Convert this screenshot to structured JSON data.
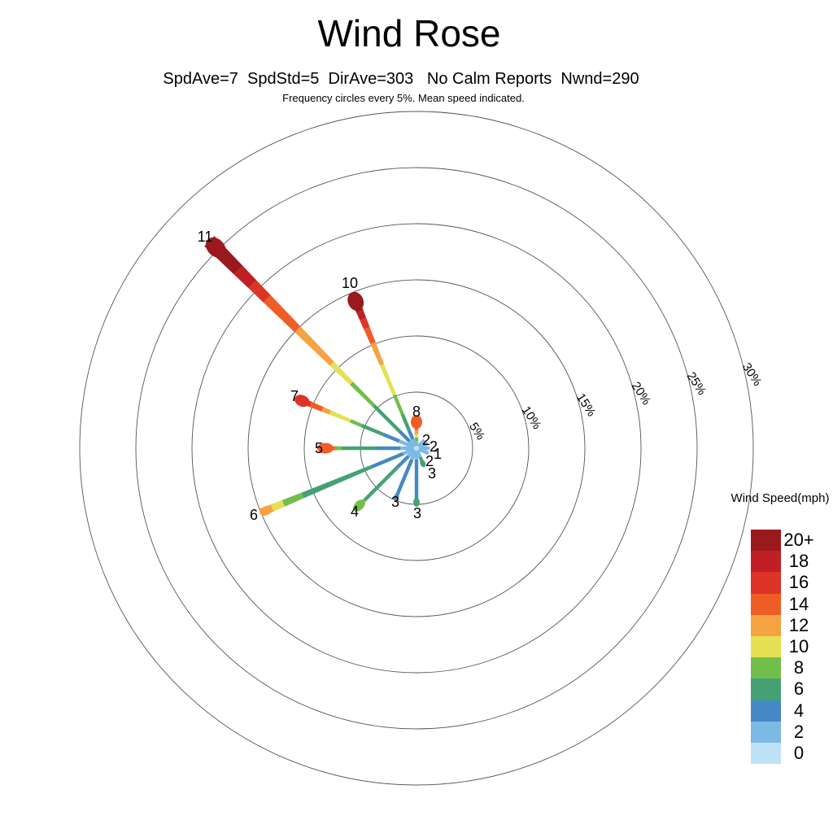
{
  "title": "Wind Rose",
  "stats_line": "SpdAve=7  SpdStd=5  DirAve=303   No Calm Reports  Nwnd=290",
  "caption": "Frequency circles every 5%. Mean speed indicated.",
  "legend": {
    "title": "Wind Speed(mph)",
    "entries": [
      {
        "label": "20+",
        "color": "#9A191D"
      },
      {
        "label": "18",
        "color": "#C02025"
      },
      {
        "label": "16",
        "color": "#DC3427"
      },
      {
        "label": "14",
        "color": "#EF5D27"
      },
      {
        "label": "12",
        "color": "#F5A243"
      },
      {
        "label": "10",
        "color": "#E5E054"
      },
      {
        "label": "8",
        "color": "#72BE4B"
      },
      {
        "label": "6",
        "color": "#45A173"
      },
      {
        "label": "4",
        "color": "#4489C5"
      },
      {
        "label": "2",
        "color": "#7CB9E3"
      },
      {
        "label": "0",
        "color": "#BEE2F7"
      }
    ]
  },
  "chart_data": {
    "type": "windrose",
    "frequency_rings_pct": [
      5,
      10,
      15,
      20,
      25,
      30
    ],
    "ring_labels": [
      "5%",
      "10%",
      "15%",
      "20%",
      "25%",
      "30%"
    ],
    "legend_position": "right",
    "speed_bin_colors": {
      "0": "#BEE2F7",
      "2": "#7CB9E3",
      "4": "#4489C5",
      "6": "#45A173",
      "8": "#72BE4B",
      "10": "#E5E054",
      "12": "#F5A243",
      "14": "#EF5D27",
      "16": "#DC3427",
      "18": "#C02025",
      "20+": "#9A191D"
    },
    "directions": [
      {
        "dir": "N",
        "compass_deg": 0,
        "mean_speed": "8",
        "total_pct": 2.83,
        "segments": [
          [
            "0",
            0,
            0.2
          ],
          [
            "2",
            0.2,
            0.65
          ],
          [
            "8",
            0.65,
            0.95
          ],
          [
            "10",
            0.95,
            1.25
          ],
          [
            "12",
            1.25,
            1.6
          ],
          [
            "14",
            1.6,
            2.83
          ]
        ]
      },
      {
        "dir": "NE",
        "compass_deg": 45,
        "mean_speed": "2",
        "total_pct": 1.01,
        "segments": [
          [
            "0",
            0,
            0.2
          ],
          [
            "2",
            0.2,
            1.01
          ]
        ]
      },
      {
        "dir": "ENE",
        "compass_deg": 67.5,
        "mean_speed": "2",
        "total_pct": 1.09,
        "segments": [
          [
            "0",
            0,
            0.2
          ],
          [
            "2",
            0.2,
            1.09
          ]
        ]
      },
      {
        "dir": "E",
        "compass_deg": 90,
        "mean_speed": "1",
        "total_pct": 1.16,
        "segments": [
          [
            "0",
            0,
            0.2
          ],
          [
            "2",
            0.2,
            1.16
          ]
        ]
      },
      {
        "dir": "ESE",
        "compass_deg": 112.5,
        "mean_speed": "2",
        "total_pct": 1.16,
        "segments": [
          [
            "0",
            0,
            0.2
          ],
          [
            "2",
            0.2,
            1.16
          ]
        ]
      },
      {
        "dir": "SSE",
        "compass_deg": 157.5,
        "mean_speed": "3",
        "total_pct": 1.74,
        "segments": [
          [
            "0",
            0,
            0.2
          ],
          [
            "2",
            0.2,
            0.87
          ],
          [
            "6",
            0.87,
            1.74
          ]
        ]
      },
      {
        "dir": "S",
        "compass_deg": 180,
        "mean_speed": "3",
        "total_pct": 5.14,
        "segments": [
          [
            "0",
            0,
            0.2
          ],
          [
            "2",
            0.2,
            1.01
          ],
          [
            "4",
            1.01,
            4.42
          ],
          [
            "6",
            4.42,
            5.14
          ]
        ]
      },
      {
        "dir": "SSW",
        "compass_deg": 202.5,
        "mean_speed": "3",
        "total_pct": 4.93,
        "segments": [
          [
            "0",
            0,
            0.2
          ],
          [
            "2",
            0.2,
            1.09
          ],
          [
            "4",
            1.09,
            4.93
          ]
        ]
      },
      {
        "dir": "SW",
        "compass_deg": 225,
        "mean_speed": "4",
        "total_pct": 7.75,
        "segments": [
          [
            "0",
            0,
            0.2
          ],
          [
            "2",
            0.2,
            1.01
          ],
          [
            "4",
            1.01,
            2.39
          ],
          [
            "6",
            2.39,
            6.52
          ],
          [
            "8",
            6.52,
            7.75
          ]
        ]
      },
      {
        "dir": "WSW",
        "compass_deg": 247.5,
        "mean_speed": "6",
        "total_pct": 15.0,
        "segments": [
          [
            "0",
            0,
            0.2
          ],
          [
            "2",
            0.2,
            1.3
          ],
          [
            "4",
            1.3,
            4.35
          ],
          [
            "6",
            4.35,
            11.0
          ],
          [
            "8",
            11.0,
            12.83
          ],
          [
            "10",
            12.83,
            13.91
          ],
          [
            "12",
            13.91,
            15.0
          ]
        ]
      },
      {
        "dir": "W",
        "compass_deg": 270,
        "mean_speed": "5",
        "total_pct": 8.7,
        "segments": [
          [
            "0",
            0,
            0.2
          ],
          [
            "2",
            0.2,
            1.45
          ],
          [
            "4",
            1.45,
            3.62
          ],
          [
            "6",
            3.62,
            6.67
          ],
          [
            "8",
            6.67,
            7.25
          ],
          [
            "14",
            7.25,
            8.7
          ]
        ]
      },
      {
        "dir": "WNW",
        "compass_deg": 292.5,
        "mean_speed": "7",
        "total_pct": 11.59,
        "segments": [
          [
            "0",
            0,
            0.2
          ],
          [
            "2",
            0.2,
            1.67
          ],
          [
            "4",
            1.67,
            3.26
          ],
          [
            "6",
            3.26,
            5.29
          ],
          [
            "8",
            5.29,
            6.38
          ],
          [
            "10",
            6.38,
            8.33
          ],
          [
            "12",
            8.33,
            9.06
          ],
          [
            "14",
            9.06,
            10.22
          ],
          [
            "16",
            10.22,
            11.59
          ]
        ]
      },
      {
        "dir": "NW",
        "compass_deg": 315,
        "mean_speed": "11",
        "total_pct": 26.09,
        "segments": [
          [
            "0",
            0,
            0.2
          ],
          [
            "2",
            0.2,
            0.87
          ],
          [
            "4",
            0.87,
            2.17
          ],
          [
            "6",
            2.17,
            5.36
          ],
          [
            "8",
            5.36,
            8.19
          ],
          [
            "10",
            8.19,
            10.65
          ],
          [
            "12",
            10.65,
            15.0
          ],
          [
            "14",
            15.0,
            18.84
          ],
          [
            "16",
            18.84,
            20.65
          ],
          [
            "18",
            20.65,
            22.46
          ],
          [
            "20+",
            22.46,
            26.09
          ]
        ]
      },
      {
        "dir": "NNW",
        "compass_deg": 337.5,
        "mean_speed": "10",
        "total_pct": 14.86,
        "segments": [
          [
            "0",
            0,
            0.2
          ],
          [
            "2",
            0.2,
            0.87
          ],
          [
            "4",
            0.87,
            1.74
          ],
          [
            "6",
            1.74,
            3.26
          ],
          [
            "8",
            3.26,
            5.14
          ],
          [
            "10",
            5.14,
            8.04
          ],
          [
            "12",
            8.04,
            10.14
          ],
          [
            "14",
            10.14,
            11.59
          ],
          [
            "16",
            11.59,
            12.46
          ],
          [
            "18",
            12.46,
            13.19
          ],
          [
            "20+",
            13.19,
            14.86
          ]
        ]
      }
    ]
  }
}
